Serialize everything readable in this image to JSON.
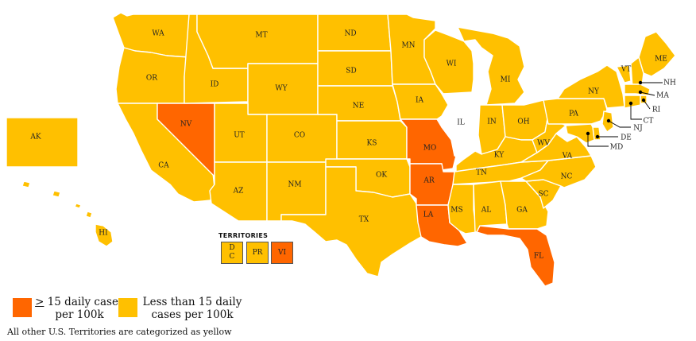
{
  "colors": {
    "high": "#ff6600",
    "low": "#ffc000",
    "none": "#ffffff"
  },
  "states": [
    {
      "abbr": "WA",
      "cat": "low"
    },
    {
      "abbr": "OR",
      "cat": "low"
    },
    {
      "abbr": "CA",
      "cat": "low"
    },
    {
      "abbr": "NV",
      "cat": "high"
    },
    {
      "abbr": "ID",
      "cat": "low"
    },
    {
      "abbr": "MT",
      "cat": "low"
    },
    {
      "abbr": "WY",
      "cat": "low"
    },
    {
      "abbr": "UT",
      "cat": "low"
    },
    {
      "abbr": "AZ",
      "cat": "low"
    },
    {
      "abbr": "CO",
      "cat": "low"
    },
    {
      "abbr": "NM",
      "cat": "low"
    },
    {
      "abbr": "ND",
      "cat": "low"
    },
    {
      "abbr": "SD",
      "cat": "low"
    },
    {
      "abbr": "NE",
      "cat": "low"
    },
    {
      "abbr": "KS",
      "cat": "low"
    },
    {
      "abbr": "OK",
      "cat": "low"
    },
    {
      "abbr": "TX",
      "cat": "low"
    },
    {
      "abbr": "MN",
      "cat": "low"
    },
    {
      "abbr": "IA",
      "cat": "low"
    },
    {
      "abbr": "MO",
      "cat": "high"
    },
    {
      "abbr": "AR",
      "cat": "high"
    },
    {
      "abbr": "LA",
      "cat": "high"
    },
    {
      "abbr": "WI",
      "cat": "low"
    },
    {
      "abbr": "IL",
      "cat": "none"
    },
    {
      "abbr": "MI",
      "cat": "low"
    },
    {
      "abbr": "IN",
      "cat": "low"
    },
    {
      "abbr": "OH",
      "cat": "low"
    },
    {
      "abbr": "KY",
      "cat": "low"
    },
    {
      "abbr": "TN",
      "cat": "low"
    },
    {
      "abbr": "MS",
      "cat": "low"
    },
    {
      "abbr": "AL",
      "cat": "low"
    },
    {
      "abbr": "GA",
      "cat": "low"
    },
    {
      "abbr": "FL",
      "cat": "high"
    },
    {
      "abbr": "SC",
      "cat": "low"
    },
    {
      "abbr": "NC",
      "cat": "low"
    },
    {
      "abbr": "VA",
      "cat": "low"
    },
    {
      "abbr": "WV",
      "cat": "low"
    },
    {
      "abbr": "PA",
      "cat": "low"
    },
    {
      "abbr": "NY",
      "cat": "low"
    },
    {
      "abbr": "VT",
      "cat": "low"
    },
    {
      "abbr": "NH",
      "cat": "low"
    },
    {
      "abbr": "ME",
      "cat": "low"
    },
    {
      "abbr": "MA",
      "cat": "low"
    },
    {
      "abbr": "RI",
      "cat": "low"
    },
    {
      "abbr": "CT",
      "cat": "low"
    },
    {
      "abbr": "NJ",
      "cat": "low"
    },
    {
      "abbr": "DE",
      "cat": "low"
    },
    {
      "abbr": "MD",
      "cat": "low"
    },
    {
      "abbr": "AK",
      "cat": "low"
    },
    {
      "abbr": "HI",
      "cat": "low"
    }
  ],
  "territories": {
    "title": "TERRITORIES",
    "items": [
      {
        "label": "D\nC",
        "cat": "low"
      },
      {
        "label": "PR",
        "cat": "low"
      },
      {
        "label": "VI",
        "cat": "high"
      }
    ]
  },
  "legend": {
    "high_line1": "> 15 daily cases",
    "high_line2": "per 100k",
    "low_line1": "Less than 15 daily",
    "low_line2": "cases per 100k"
  },
  "footnote": "All other U.S. Territories are categorized as yellow"
}
